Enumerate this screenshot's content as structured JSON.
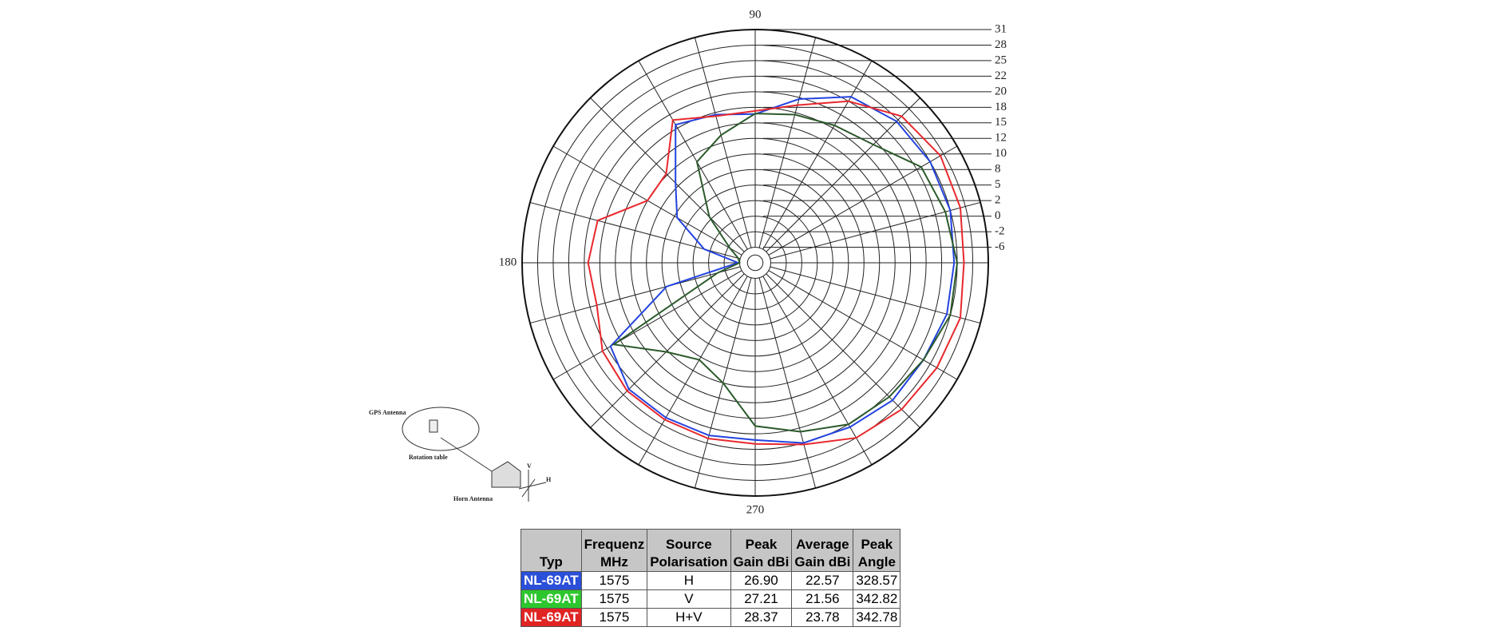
{
  "chart_data": {
    "type": "polar",
    "theta": [
      0,
      15,
      30,
      45,
      60,
      75,
      90,
      105,
      120,
      135,
      150,
      165,
      180,
      195,
      210,
      225,
      240,
      255,
      270,
      285,
      300,
      315,
      330,
      345
    ],
    "theta_labels": [
      90,
      180,
      270
    ],
    "rlim": [
      -6,
      31
    ],
    "rticks": [
      31,
      28,
      25,
      22,
      20,
      18,
      15,
      12,
      10,
      8,
      5,
      2,
      0,
      -2,
      -6
    ],
    "series": [
      {
        "name": "H",
        "color": "#2343e0",
        "values": [
          24.4,
          25,
          25,
          24.6,
          23,
          19.8,
          16.7,
          17.6,
          18.5,
          10.5,
          7.4,
          0.8,
          -5.6,
          7.7,
          19.5,
          21,
          21,
          21,
          20.8,
          22,
          22.6,
          23.5,
          23.5,
          24.3
        ]
      },
      {
        "name": "V",
        "color": "#2b5a2b",
        "values": [
          25,
          24,
          23,
          19.5,
          18.4,
          17.6,
          16.8,
          13.5,
          11,
          2.5,
          -2.5,
          -5.5,
          -6,
          -1,
          19,
          12.3,
          10.4,
          12,
          19,
          20.5,
          22,
          22.6,
          23.5,
          25
        ]
      },
      {
        "name": "H+V",
        "color": "#e8282c",
        "values": [
          26.3,
          27,
          27.3,
          26,
          22,
          19,
          17.3,
          17.3,
          19.2,
          12.3,
          12,
          19,
          19.5,
          19.1,
          20.7,
          21.3,
          21.3,
          21.4,
          21.3,
          22.3,
          25,
          26,
          26.5,
          27
        ]
      }
    ]
  },
  "table": {
    "header": [
      [
        "Typ"
      ],
      [
        "Frequenz",
        "MHz"
      ],
      [
        "Source",
        "Polarisation"
      ],
      [
        "Peak",
        "Gain dBi"
      ],
      [
        "Average",
        "Gain dBi"
      ],
      [
        "Peak",
        "Angle"
      ]
    ],
    "rows": [
      [
        "NL-69AT",
        "1575",
        "H",
        "26.90",
        "22.57",
        "328.57"
      ],
      [
        "NL-69AT",
        "1575",
        "V",
        "27.21",
        "21.56",
        "342.82"
      ],
      [
        "NL-69AT",
        "1575",
        "H+V",
        "28.37",
        "23.78",
        "342.78"
      ]
    ]
  },
  "diagram": {
    "gps_antenna": "GPS Antenna",
    "rotation_table": "Rotation table",
    "horn_antenna": "Horn Antenna",
    "v": "V",
    "h": "H"
  }
}
